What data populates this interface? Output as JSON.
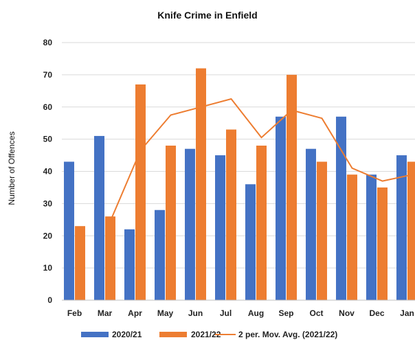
{
  "chart_data": {
    "type": "bar",
    "title": "Knife Crime in Enfield",
    "xlabel": "",
    "ylabel": "Number of Offences",
    "ylim": [
      0,
      80
    ],
    "yticks": [
      0,
      10,
      20,
      30,
      40,
      50,
      60,
      70,
      80
    ],
    "grid": true,
    "legend_position": "bottom",
    "categories": [
      "Feb",
      "Mar",
      "Apr",
      "May",
      "Jun",
      "Jul",
      "Aug",
      "Sep",
      "Oct",
      "Nov",
      "Dec",
      "Jan"
    ],
    "series": [
      {
        "name": "2020/21",
        "type": "bar",
        "color": "#4472C4",
        "values": [
          43,
          51,
          22,
          28,
          47,
          45,
          36,
          57,
          47,
          57,
          39,
          45
        ]
      },
      {
        "name": "2021/22",
        "type": "bar",
        "color": "#ED7D31",
        "values": [
          23,
          26,
          67,
          48,
          72,
          53,
          48,
          70,
          43,
          39,
          35,
          43
        ]
      },
      {
        "name": "2 per. Mov. Avg. (2021/22)",
        "type": "line",
        "color": "#ED7D31",
        "values": [
          null,
          24.5,
          46.5,
          57.5,
          60,
          62.5,
          50.5,
          59,
          56.5,
          41,
          37,
          39
        ]
      }
    ]
  }
}
